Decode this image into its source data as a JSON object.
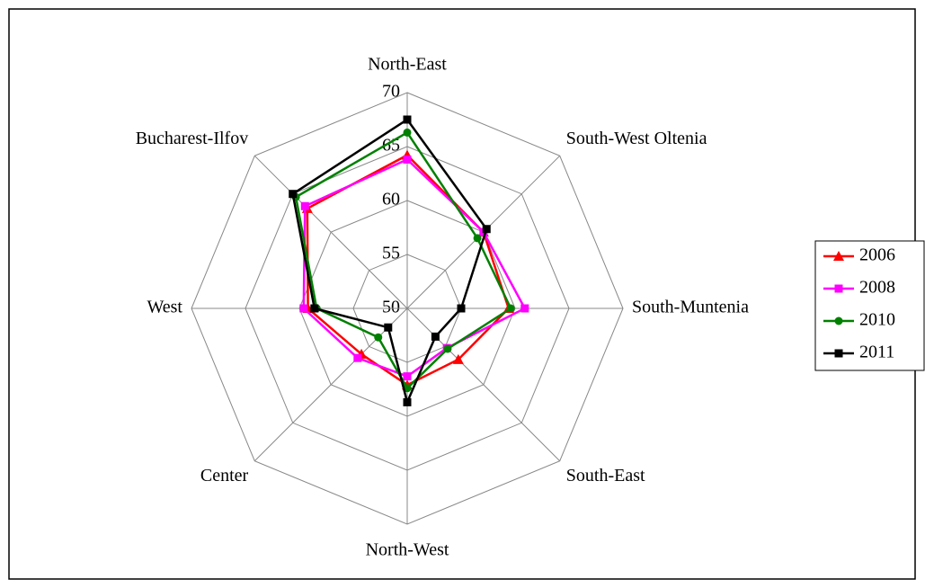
{
  "chart_data": {
    "type": "radar",
    "categories": [
      "North-East",
      "South-West Oltenia",
      "South-Muntenia",
      "South-East",
      "North-West",
      "Center",
      "West",
      "Bucharest-Ilfov"
    ],
    "rlim": [
      50,
      70
    ],
    "rticks": [
      50,
      55,
      60,
      65,
      70
    ],
    "grid": true,
    "legend": "right",
    "series": [
      {
        "name": "2006",
        "color": "#ff0000",
        "marker": "triangle",
        "values": [
          64.2,
          60.0,
          59.4,
          56.7,
          57.1,
          56.0,
          59.2,
          63.1
        ]
      },
      {
        "name": "2008",
        "color": "#ff00ff",
        "marker": "square",
        "values": [
          63.8,
          60.0,
          60.9,
          55.2,
          56.3,
          56.5,
          59.6,
          63.4
        ]
      },
      {
        "name": "2010",
        "color": "#008000",
        "marker": "circle",
        "values": [
          66.3,
          59.2,
          59.6,
          55.3,
          57.4,
          53.8,
          58.4,
          64.6
        ]
      },
      {
        "name": "2011",
        "color": "#000000",
        "marker": "square",
        "values": [
          67.5,
          60.4,
          55.0,
          53.7,
          58.7,
          52.5,
          58.6,
          65.0
        ]
      }
    ]
  }
}
